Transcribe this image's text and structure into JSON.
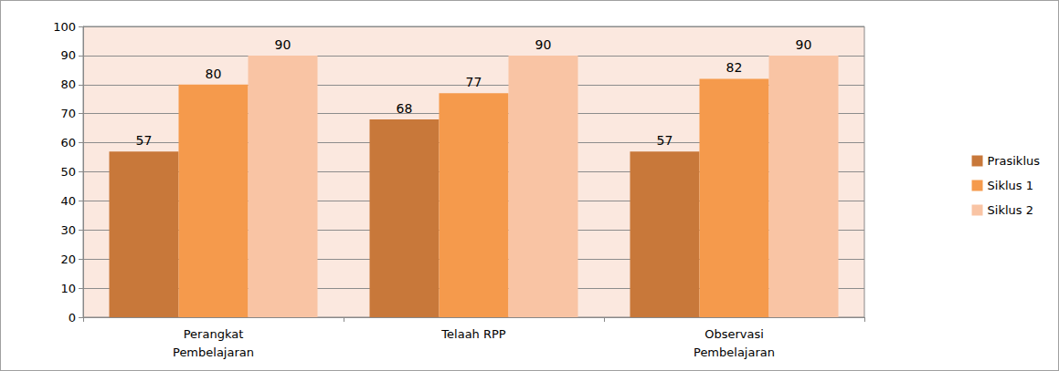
{
  "chart_data": {
    "type": "bar",
    "categories": [
      "Perangkat Pembelajaran",
      "Telaah RPP",
      "Observasi Pembelajaran"
    ],
    "series": [
      {
        "name": "Prasiklus",
        "color": "#c8783a",
        "values": [
          57,
          68,
          57
        ]
      },
      {
        "name": "Siklus 1",
        "color": "#f59a4c",
        "values": [
          80,
          77,
          82
        ]
      },
      {
        "name": "Siklus 2",
        "color": "#f9c4a4",
        "values": [
          90,
          90,
          90
        ]
      }
    ],
    "ylim": [
      0,
      100
    ],
    "yticks": [
      0,
      10,
      20,
      30,
      40,
      50,
      60,
      70,
      80,
      90,
      100
    ],
    "grid": true,
    "data_labels": true,
    "legend": "right"
  }
}
